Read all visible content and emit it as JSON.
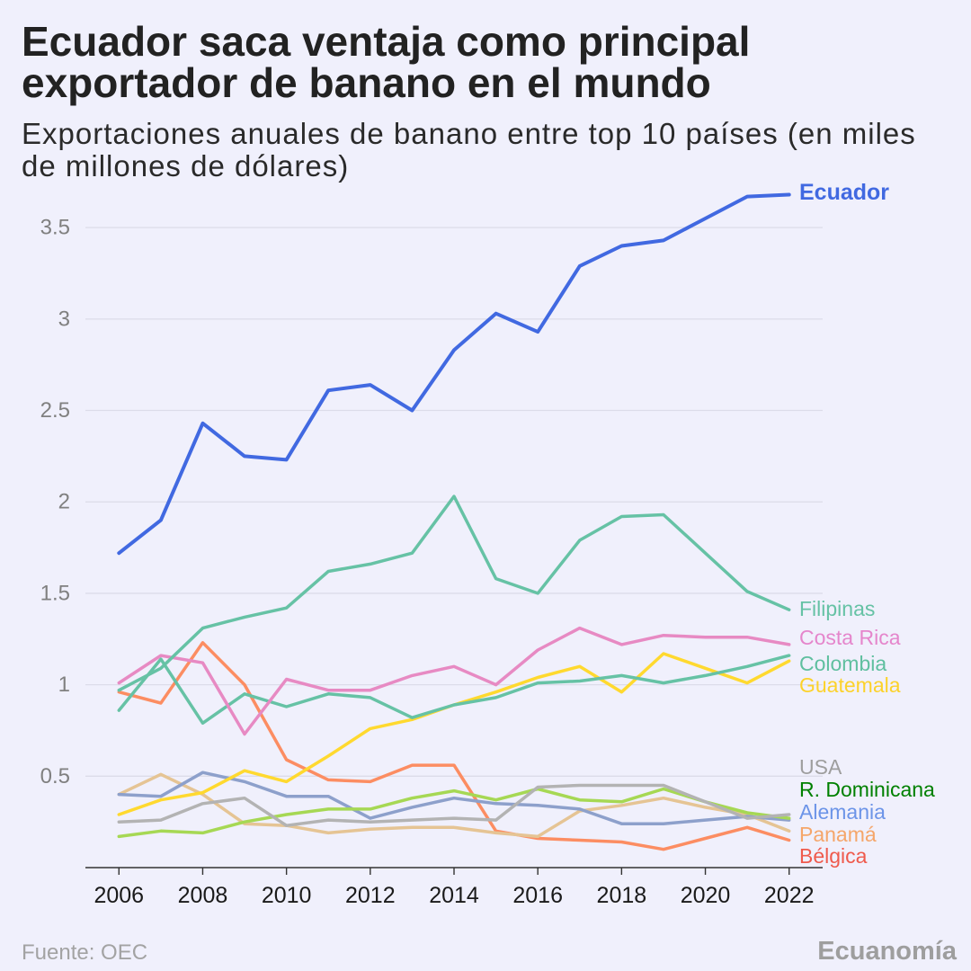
{
  "chart_data": {
    "type": "line",
    "title_lines": [
      "Ecuador saca ventaja como principal",
      "exportador de banano en el mundo"
    ],
    "subtitle_lines": [
      "Exportaciones anuales de banano entre top 10 países (en miles",
      "de millones de dólares)"
    ],
    "x": [
      2006,
      2007,
      2008,
      2009,
      2010,
      2011,
      2012,
      2013,
      2014,
      2015,
      2016,
      2017,
      2018,
      2019,
      2020,
      2021,
      2022
    ],
    "x_ticks": [
      2006,
      2008,
      2010,
      2012,
      2014,
      2016,
      2018,
      2020,
      2022
    ],
    "y_ticks": [
      0.5,
      1,
      1.5,
      2,
      2.5,
      3,
      3.5
    ],
    "xlim": [
      2005.2,
      2022.8
    ],
    "ylim": [
      0,
      3.75
    ],
    "grid": true,
    "series": [
      {
        "name": "Ecuador",
        "color": "#4169e1",
        "label_color": "#4169e1",
        "values": [
          1.72,
          1.9,
          2.43,
          2.25,
          2.23,
          2.61,
          2.64,
          2.5,
          2.83,
          3.03,
          2.93,
          3.29,
          3.4,
          3.43,
          3.55,
          3.67,
          3.68
        ]
      },
      {
        "name": "Filipinas",
        "color": "#66c2a5",
        "label_color": "#66c2a5",
        "values": [
          0.97,
          1.09,
          1.31,
          1.37,
          1.42,
          1.62,
          1.66,
          1.72,
          2.03,
          1.58,
          1.5,
          1.79,
          1.92,
          1.93,
          1.72,
          1.51,
          1.41
        ]
      },
      {
        "name": "Costa Rica",
        "color": "#e78ac3",
        "label_color": "#e586cc",
        "values": [
          1.01,
          1.16,
          1.12,
          0.73,
          1.03,
          0.97,
          0.97,
          1.05,
          1.1,
          1.0,
          1.19,
          1.31,
          1.22,
          1.27,
          1.26,
          1.26,
          1.22
        ]
      },
      {
        "name": "Colombia",
        "color": "#66c2a5",
        "label_color": "#5fbf9f",
        "values": [
          0.86,
          1.14,
          0.79,
          0.95,
          0.88,
          0.95,
          0.93,
          0.82,
          0.89,
          0.93,
          1.01,
          1.02,
          1.05,
          1.01,
          1.05,
          1.1,
          1.16
        ]
      },
      {
        "name": "Guatemala",
        "color": "#ffd92f",
        "label_color": "#fcd22a",
        "values": [
          0.29,
          0.37,
          0.41,
          0.53,
          0.47,
          0.61,
          0.76,
          0.81,
          0.89,
          0.96,
          1.04,
          1.1,
          0.96,
          1.17,
          1.09,
          1.01,
          1.13
        ]
      },
      {
        "name": "USA",
        "color": "#b3b3b3",
        "label_color": "#9e9e9e",
        "values": [
          0.25,
          0.26,
          0.35,
          0.38,
          0.23,
          0.26,
          0.25,
          0.26,
          0.27,
          0.26,
          0.44,
          0.45,
          0.45,
          0.45,
          0.36,
          0.27,
          0.29
        ]
      },
      {
        "name": "R. Dominicana",
        "color": "#a6d854",
        "label_color": "#008000",
        "values": [
          0.17,
          0.2,
          0.19,
          0.25,
          0.29,
          0.32,
          0.32,
          0.38,
          0.42,
          0.37,
          0.43,
          0.37,
          0.36,
          0.43,
          0.36,
          0.3,
          0.27
        ]
      },
      {
        "name": "Alemania",
        "color": "#8da0cb",
        "label_color": "#6c94e8",
        "values": [
          0.4,
          0.39,
          0.52,
          0.47,
          0.39,
          0.39,
          0.27,
          0.33,
          0.38,
          0.35,
          0.34,
          0.32,
          0.24,
          0.24,
          0.26,
          0.28,
          0.26
        ]
      },
      {
        "name": "Panamá",
        "color": "#e5c494",
        "label_color": "#f5a66a",
        "values": [
          0.4,
          0.51,
          0.4,
          0.24,
          0.23,
          0.19,
          0.21,
          0.22,
          0.22,
          0.19,
          0.17,
          0.31,
          0.34,
          0.38,
          0.33,
          0.29,
          0.2
        ]
      },
      {
        "name": "Bélgica",
        "color": "#fc8d62",
        "label_color": "#ef5a4c",
        "values": [
          0.96,
          0.9,
          1.23,
          1.0,
          0.59,
          0.48,
          0.47,
          0.56,
          0.56,
          0.2,
          0.16,
          0.15,
          0.14,
          0.1,
          0.16,
          0.22,
          0.15
        ]
      }
    ]
  },
  "footer": {
    "source": "Fuente: OEC",
    "brand": "Ecuanomía"
  },
  "colors": {
    "background": "#f0f0fc"
  }
}
